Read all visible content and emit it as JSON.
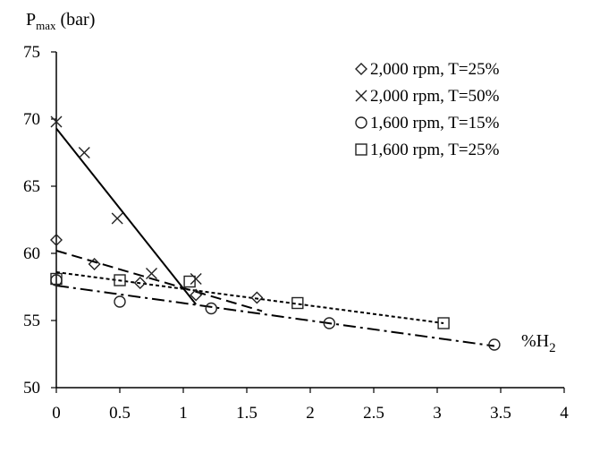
{
  "chart_data": {
    "type": "scatter",
    "ylabel": {
      "main": "P",
      "sub": "max",
      "rest": " (bar)"
    },
    "xlabel": {
      "main": "%H",
      "sub": "2"
    },
    "xlim": [
      0,
      4
    ],
    "ylim": [
      50,
      75
    ],
    "x_ticks": [
      "0",
      "0.5",
      "1",
      "1.5",
      "2",
      "2.5",
      "3",
      "3.5",
      "4"
    ],
    "y_ticks": [
      "50",
      "55",
      "60",
      "65",
      "70",
      "75"
    ],
    "series": [
      {
        "name": "2,000 rpm, T=25%",
        "marker": "diamond",
        "x": [
          0,
          0.3,
          0.66,
          1.1,
          1.58
        ],
        "y": [
          61.0,
          59.2,
          57.8,
          56.9,
          56.7
        ],
        "fit": {
          "style": "dashed",
          "x": [
            0,
            1.62
          ],
          "y": [
            60.2,
            55.7
          ]
        }
      },
      {
        "name": "2,000 rpm, T=50%",
        "marker": "cross",
        "x": [
          0,
          0.22,
          0.48,
          0.75,
          1.1
        ],
        "y": [
          69.8,
          67.5,
          62.6,
          58.5,
          58.1
        ],
        "fit": {
          "style": "solid",
          "x": [
            0,
            1.1
          ],
          "y": [
            69.3,
            56.2
          ]
        }
      },
      {
        "name": "1,600 rpm, T=15%",
        "marker": "circle",
        "x": [
          0,
          0.5,
          1.22,
          2.15,
          3.45
        ],
        "y": [
          58.0,
          56.4,
          55.9,
          54.8,
          53.2
        ],
        "fit": {
          "style": "dashdot",
          "x": [
            0,
            3.45
          ],
          "y": [
            57.6,
            53.1
          ]
        }
      },
      {
        "name": "1,600 rpm, T=25%",
        "marker": "square",
        "x": [
          0,
          0.5,
          1.05,
          1.9,
          3.05
        ],
        "y": [
          58.1,
          58.0,
          57.9,
          56.3,
          54.8
        ],
        "fit": {
          "style": "dotted",
          "x": [
            0,
            3.05
          ],
          "y": [
            58.6,
            54.8
          ]
        }
      }
    ],
    "legend_position": "top-right",
    "grid": false
  }
}
